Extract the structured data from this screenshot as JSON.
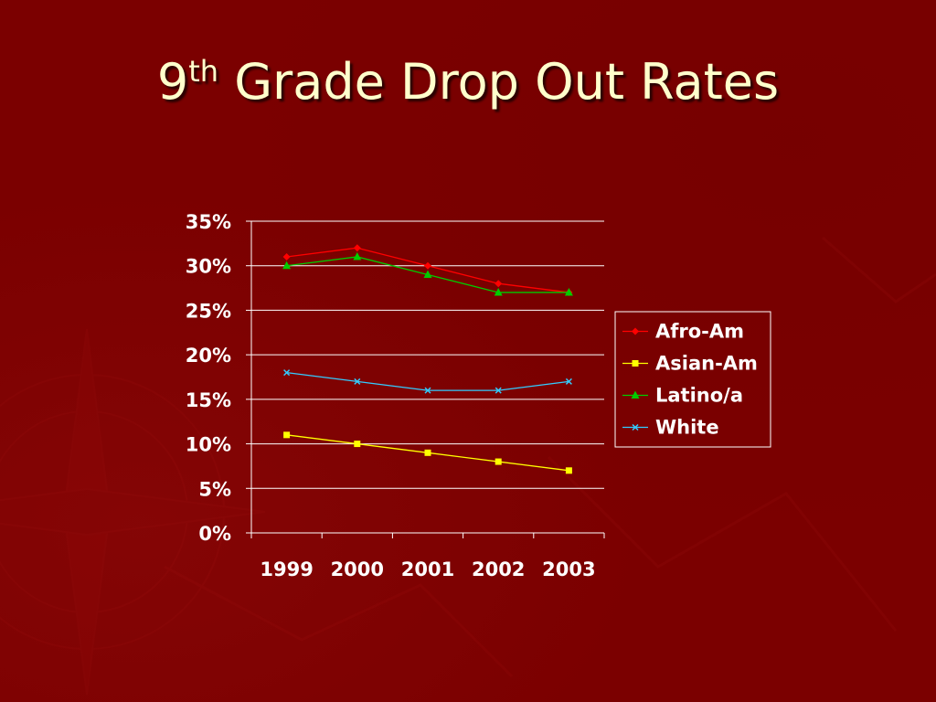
{
  "slide": {
    "title_main": "9",
    "title_sup": "th",
    "title_rest": " Grade Drop Out Rates"
  },
  "chart_data": {
    "type": "line",
    "title": "",
    "xlabel": "",
    "ylabel": "",
    "categories": [
      "1999",
      "2000",
      "2001",
      "2002",
      "2003"
    ],
    "y_ticks": [
      "0%",
      "5%",
      "10%",
      "15%",
      "20%",
      "25%",
      "30%",
      "35%"
    ],
    "ylim": [
      0,
      35
    ],
    "y_unit": "%",
    "grid": "horizontal",
    "legend_position": "right",
    "series": [
      {
        "name": "Afro-Am",
        "values": [
          31,
          32,
          30,
          28,
          27
        ],
        "color": "#ff0000",
        "marker": "diamond"
      },
      {
        "name": "Asian-Am",
        "values": [
          11,
          10,
          9,
          8,
          7
        ],
        "color": "#ffff00",
        "marker": "square"
      },
      {
        "name": "Latino/a",
        "values": [
          30,
          31,
          29,
          27,
          27
        ],
        "color": "#00cc00",
        "marker": "triangle"
      },
      {
        "name": "White",
        "values": [
          18,
          17,
          16,
          16,
          17
        ],
        "color": "#33ccff",
        "marker": "x"
      }
    ]
  }
}
